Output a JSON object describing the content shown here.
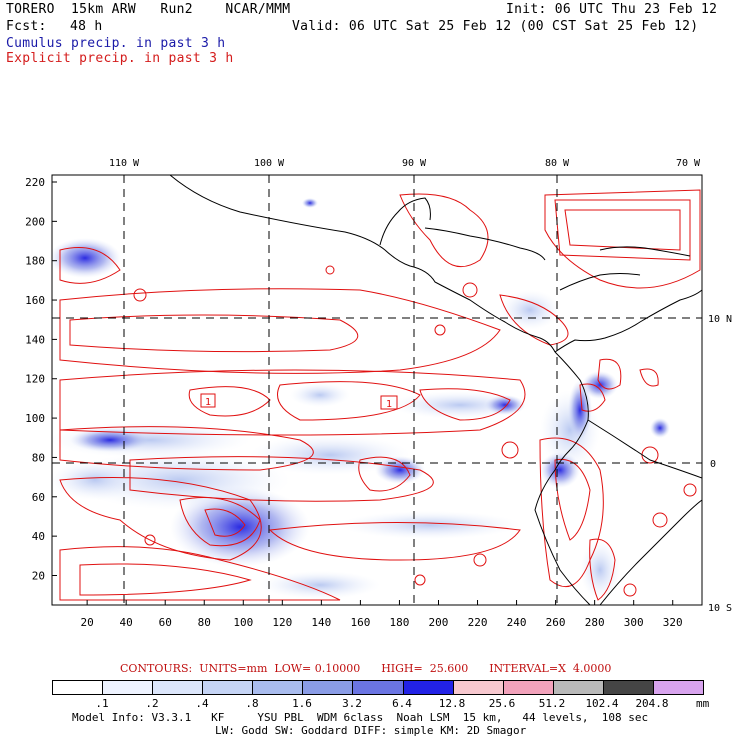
{
  "header": {
    "model_line": "TORERO  15km ARW   Run2    NCAR/MMM",
    "init": "Init: 06 UTC Thu 23 Feb 12",
    "fcst_label": "Fcst:",
    "fcst_value": "48 h",
    "valid": "Valid: 06 UTC Sat 25 Feb 12 (00 CST Sat 25 Feb 12)",
    "cumulus": "Cumulus precip. in past 3 h",
    "explicit": "Explicit precip. in past 3 h"
  },
  "map": {
    "top_lon_labels": [
      "110 W",
      "100 W",
      "90 W",
      "80 W",
      "70 W"
    ],
    "right_lat_labels": [
      "10 N",
      "0",
      "10 S"
    ],
    "y_ticks": [
      "220",
      "200",
      "180",
      "160",
      "140",
      "120",
      "100",
      "80",
      "60",
      "40",
      "20"
    ],
    "x_ticks": [
      "20",
      "40",
      "60",
      "80",
      "100",
      "120",
      "140",
      "160",
      "180",
      "200",
      "220",
      "240",
      "260",
      "280",
      "300",
      "320"
    ],
    "boxed_labels": [
      "1",
      "1"
    ],
    "contour_color": "#e01010"
  },
  "contour_info": {
    "text": "CONTOURS:  UNITS=mm  LOW= 0.10000      HIGH=  25.600      INTERVAL=X  4.0000"
  },
  "legend": {
    "labels": [
      ".1",
      ".2",
      ".4",
      ".8",
      "1.6",
      "3.2",
      "6.4",
      "12.8",
      "25.6",
      "51.2",
      "102.4",
      "204.8"
    ],
    "unit": "mm",
    "colors": [
      "#ffffff",
      "#eef3ff",
      "#dce6fb",
      "#c5d4f5",
      "#a9bcee",
      "#8a9ce6",
      "#6b75e3",
      "#2222e6",
      "#f7c8cf",
      "#f2a2bb",
      "#b9b9b9",
      "#454545",
      "#d8a4ee"
    ]
  },
  "footer": {
    "line1": "Model Info: V3.3.1   KF     YSU PBL  WDM 6class  Noah LSM  15 km,   44 levels,  108 sec",
    "line2": "LW: Godd SW: Goddard DIFF: simple KM: 2D Smagor"
  }
}
